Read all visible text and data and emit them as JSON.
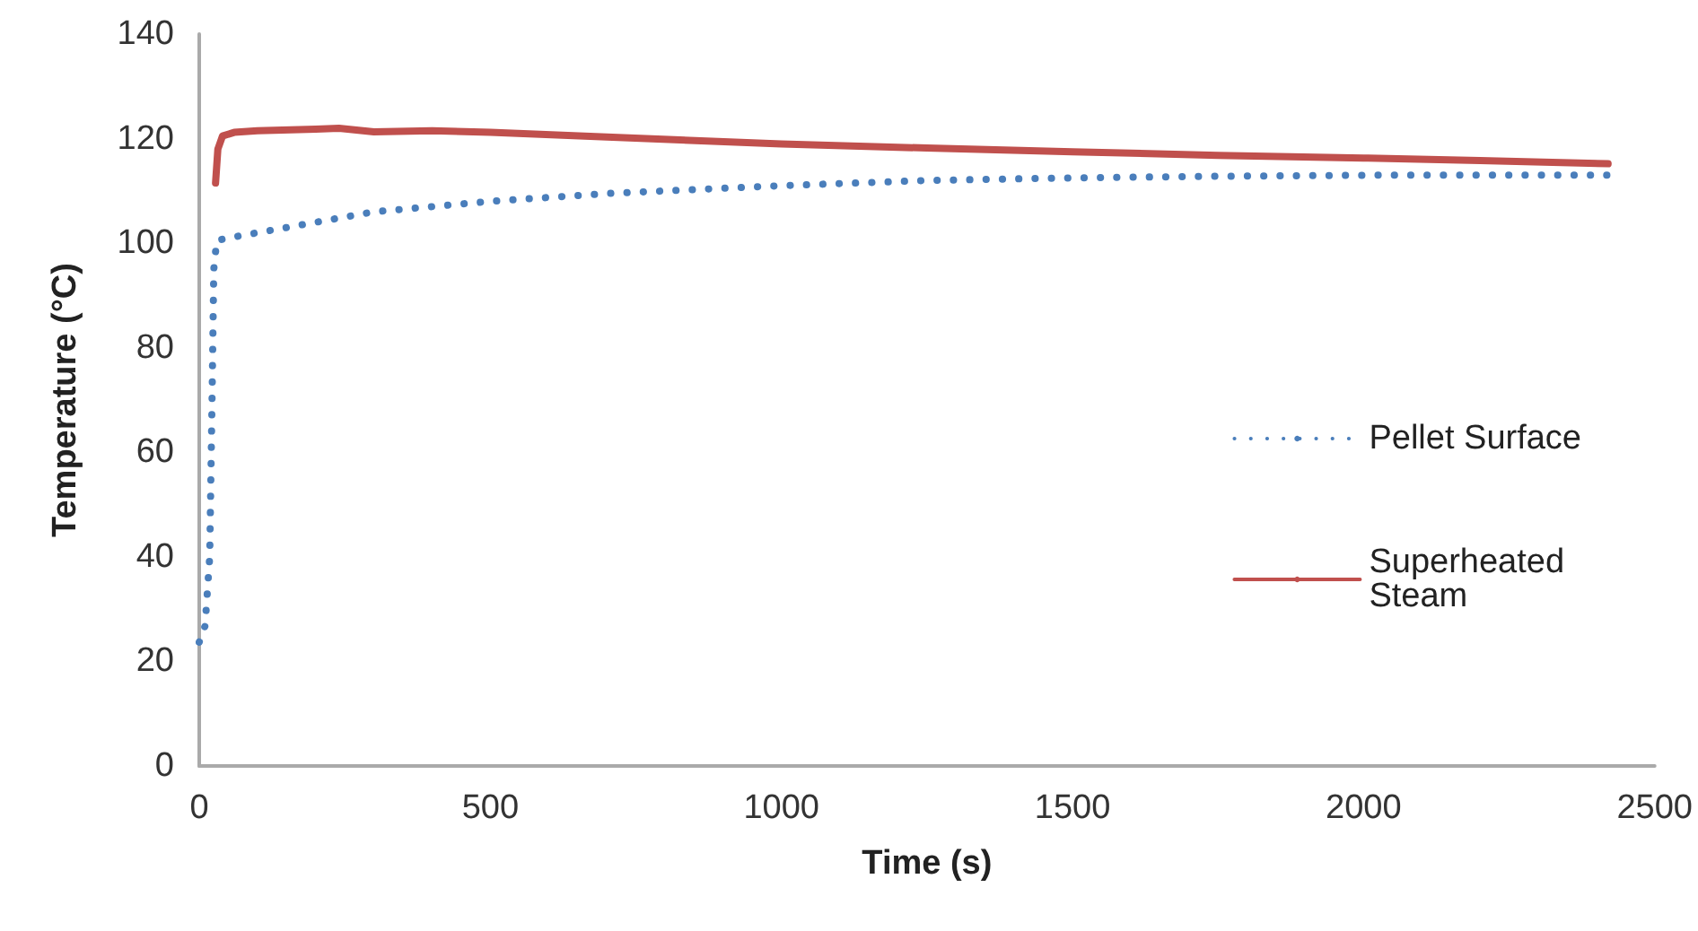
{
  "chart_data": {
    "type": "line",
    "xlabel": "Time (s)",
    "ylabel": "Temperature (°C)",
    "xlim": [
      0,
      2500
    ],
    "xticks": [
      0,
      500,
      1000,
      1500,
      2000,
      2500
    ],
    "ylim": [
      0,
      140
    ],
    "yticks": [
      0,
      20,
      40,
      60,
      80,
      100,
      120,
      140
    ],
    "grid": false,
    "legend": "right",
    "marker": "none",
    "series": [
      {
        "name": "Pellet Surface",
        "color": "#4a7ebb",
        "line_style": "dotted",
        "x": [
          0,
          10,
          18,
          22,
          25,
          30,
          50,
          100,
          200,
          300,
          500,
          700,
          1000,
          1250,
          1500,
          1750,
          2000,
          2200,
          2420
        ],
        "values": [
          23.7,
          26.8,
          40,
          70,
          95,
          100.5,
          101,
          102,
          104,
          106,
          108,
          109.5,
          111,
          112,
          112.5,
          112.8,
          113,
          113,
          113
        ]
      },
      {
        "name": "Superheated Steam",
        "color": "#c0504d",
        "line_style": "solid",
        "x": [
          28,
          32,
          40,
          60,
          100,
          200,
          240,
          300,
          400,
          500,
          700,
          1000,
          1250,
          1500,
          1750,
          2000,
          2200,
          2420
        ],
        "values": [
          111.5,
          118,
          120.5,
          121.2,
          121.5,
          121.8,
          122,
          121.3,
          121.5,
          121.2,
          120.3,
          119,
          118.2,
          117.5,
          116.8,
          116.3,
          115.8,
          115.2
        ]
      }
    ]
  }
}
